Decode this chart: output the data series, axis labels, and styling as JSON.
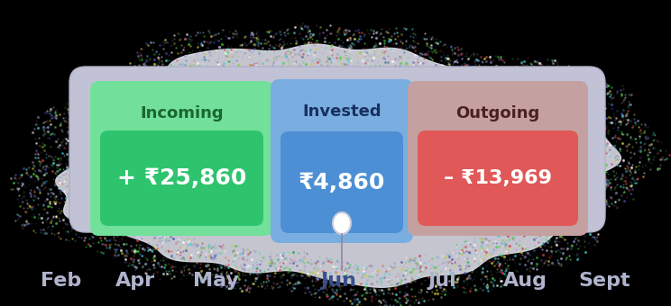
{
  "bg_color": "#000000",
  "incoming_label": "Incoming",
  "incoming_value": "+ ₹25,860",
  "incoming_outer_color": "#72e09a",
  "incoming_box_color": "#2ec46e",
  "incoming_label_color": "#1a6630",
  "invested_label": "Invested",
  "invested_value": "₹4,860",
  "invested_box_color": "#4d8fd4",
  "invested_label_color": "#1a3060",
  "invested_card_color": "#7aaee0",
  "outgoing_label": "Outgoing",
  "outgoing_value": "– ₹13,969",
  "outgoing_box_color": "#e05858",
  "outgoing_label_color": "#4a2020",
  "outgoing_card_color": "#c4a0a0",
  "card_pill_color": "#c2c2d6",
  "card_pill_edge": "#b0b0c8",
  "months": [
    "Feb",
    "Apr",
    "May",
    "Jun",
    "Jul",
    "Aug",
    "Sept"
  ],
  "active_month": "Jun",
  "active_month_color": "#3a4e8a",
  "month_color": "#b0b4cc",
  "blob_fill": "#dcdce8",
  "blob_dot_colors": [
    "#ffffff",
    "#aaaacc",
    "#8888bb",
    "#4455aa",
    "#cc4444",
    "#44cc44",
    "#cccc44",
    "#44cccc"
  ],
  "sel_circle_color": "#ccccdd",
  "sel_line_color": "#888899"
}
